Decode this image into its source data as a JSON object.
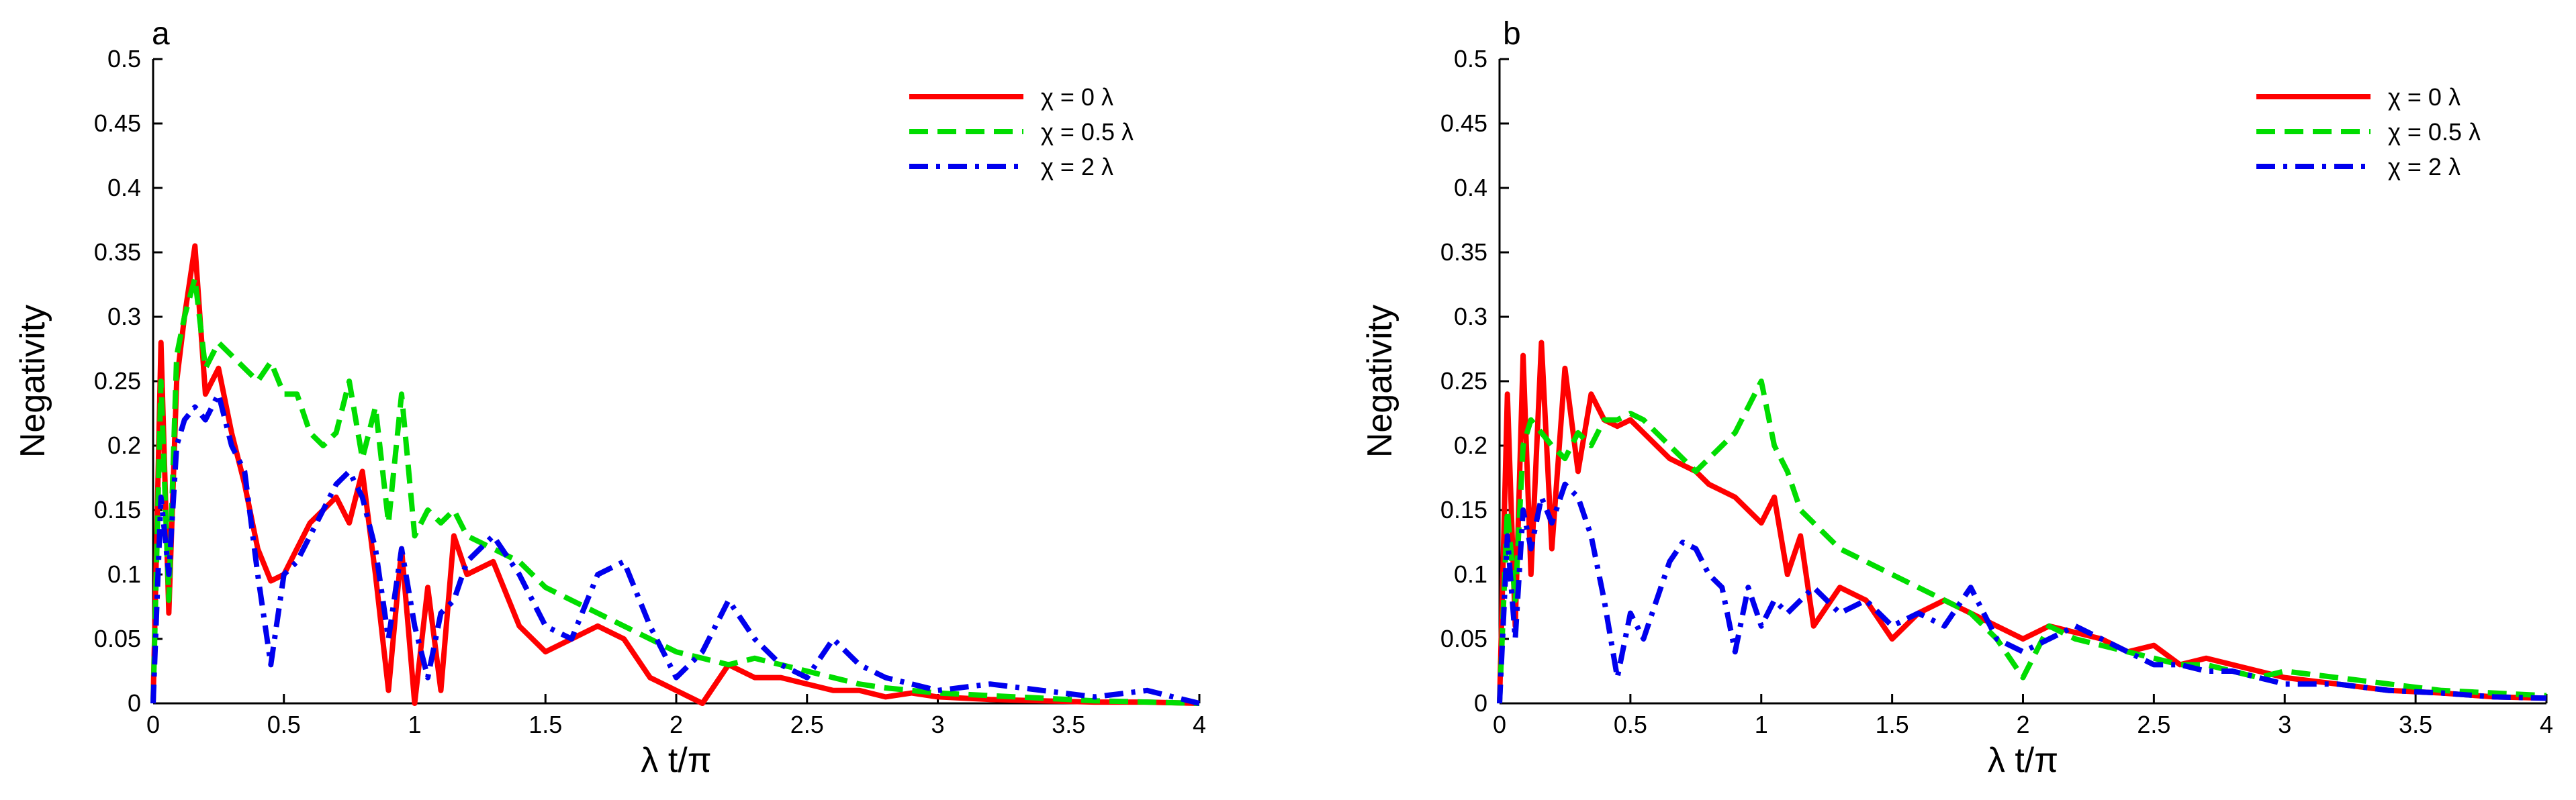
{
  "chart_data": [
    {
      "type": "line",
      "panel_label": "a",
      "title": "",
      "xlabel": "λ t/π",
      "ylabel": "Negativity",
      "xlim": [
        0,
        4
      ],
      "ylim": [
        0,
        0.5
      ],
      "xticks": [
        0,
        0.5,
        1,
        1.5,
        2,
        2.5,
        3,
        3.5,
        4
      ],
      "xtick_labels": [
        "0",
        "0.5",
        "1",
        "1.5",
        "2",
        "2.5",
        "3",
        "3.5",
        "4"
      ],
      "yticks": [
        0,
        0.05,
        0.1,
        0.15,
        0.2,
        0.25,
        0.3,
        0.35,
        0.4,
        0.45,
        0.5
      ],
      "ytick_labels": [
        "0",
        "0.05",
        "0.1",
        "0.15",
        "0.2",
        "0.25",
        "0.3",
        "0.35",
        "0.4",
        "0.45",
        "0.5"
      ],
      "legend_position": "top-right",
      "series": [
        {
          "name": "χ = 0 λ",
          "color": "#ff0000",
          "style": "solid",
          "x": [
            0,
            0.03,
            0.06,
            0.09,
            0.12,
            0.16,
            0.2,
            0.25,
            0.3,
            0.35,
            0.4,
            0.45,
            0.5,
            0.55,
            0.6,
            0.65,
            0.7,
            0.75,
            0.8,
            0.85,
            0.9,
            0.95,
            1.0,
            1.05,
            1.1,
            1.15,
            1.2,
            1.3,
            1.4,
            1.5,
            1.6,
            1.7,
            1.8,
            1.9,
            2.0,
            2.1,
            2.2,
            2.3,
            2.4,
            2.5,
            2.6,
            2.7,
            2.8,
            2.9,
            3.0,
            3.2,
            3.4,
            3.6,
            3.8,
            4.0
          ],
          "y": [
            0,
            0.28,
            0.07,
            0.25,
            0.3,
            0.355,
            0.24,
            0.26,
            0.21,
            0.17,
            0.12,
            0.095,
            0.1,
            0.12,
            0.14,
            0.15,
            0.16,
            0.14,
            0.18,
            0.1,
            0.01,
            0.12,
            0.0,
            0.09,
            0.01,
            0.13,
            0.1,
            0.11,
            0.06,
            0.04,
            0.05,
            0.06,
            0.05,
            0.02,
            0.01,
            0.0,
            0.03,
            0.02,
            0.02,
            0.015,
            0.01,
            0.01,
            0.005,
            0.008,
            0.005,
            0.003,
            0.002,
            0.001,
            0.001,
            0.0
          ]
        },
        {
          "name": "χ = 0.5 λ",
          "color": "#00dd00",
          "style": "dashed",
          "x": [
            0,
            0.03,
            0.06,
            0.09,
            0.12,
            0.16,
            0.2,
            0.25,
            0.3,
            0.35,
            0.4,
            0.45,
            0.5,
            0.55,
            0.6,
            0.65,
            0.7,
            0.75,
            0.8,
            0.85,
            0.9,
            0.95,
            1.0,
            1.05,
            1.1,
            1.15,
            1.2,
            1.3,
            1.4,
            1.5,
            1.6,
            1.7,
            1.8,
            1.9,
            2.0,
            2.1,
            2.2,
            2.3,
            2.4,
            2.5,
            2.6,
            2.7,
            2.8,
            2.9,
            3.0,
            3.2,
            3.4,
            3.6,
            3.8,
            4.0
          ],
          "y": [
            0,
            0.25,
            0.08,
            0.27,
            0.3,
            0.33,
            0.26,
            0.28,
            0.27,
            0.26,
            0.25,
            0.265,
            0.24,
            0.24,
            0.21,
            0.2,
            0.21,
            0.25,
            0.19,
            0.23,
            0.14,
            0.24,
            0.13,
            0.15,
            0.14,
            0.15,
            0.13,
            0.12,
            0.11,
            0.09,
            0.08,
            0.07,
            0.06,
            0.05,
            0.04,
            0.035,
            0.03,
            0.035,
            0.03,
            0.025,
            0.02,
            0.015,
            0.012,
            0.01,
            0.008,
            0.006,
            0.004,
            0.002,
            0.001,
            0.0
          ]
        },
        {
          "name": "χ = 2 λ",
          "color": "#0000ee",
          "style": "dashdot",
          "x": [
            0,
            0.03,
            0.06,
            0.09,
            0.12,
            0.16,
            0.2,
            0.25,
            0.3,
            0.35,
            0.4,
            0.45,
            0.5,
            0.55,
            0.6,
            0.65,
            0.7,
            0.75,
            0.8,
            0.85,
            0.9,
            0.95,
            1.0,
            1.05,
            1.1,
            1.15,
            1.2,
            1.3,
            1.4,
            1.5,
            1.6,
            1.7,
            1.8,
            1.9,
            2.0,
            2.1,
            2.2,
            2.3,
            2.4,
            2.5,
            2.6,
            2.7,
            2.8,
            2.9,
            3.0,
            3.2,
            3.4,
            3.6,
            3.8,
            4.0
          ],
          "y": [
            0,
            0.16,
            0.1,
            0.2,
            0.22,
            0.23,
            0.22,
            0.24,
            0.2,
            0.18,
            0.1,
            0.03,
            0.1,
            0.11,
            0.13,
            0.15,
            0.17,
            0.18,
            0.16,
            0.12,
            0.05,
            0.12,
            0.06,
            0.02,
            0.07,
            0.08,
            0.11,
            0.13,
            0.1,
            0.06,
            0.05,
            0.1,
            0.11,
            0.06,
            0.02,
            0.04,
            0.08,
            0.05,
            0.03,
            0.02,
            0.05,
            0.03,
            0.02,
            0.015,
            0.01,
            0.015,
            0.01,
            0.005,
            0.01,
            0.0
          ]
        }
      ]
    },
    {
      "type": "line",
      "panel_label": "b",
      "title": "",
      "xlabel": "λ t/π",
      "ylabel": "Negativity",
      "xlim": [
        0,
        4
      ],
      "ylim": [
        0,
        0.5
      ],
      "xticks": [
        0,
        0.5,
        1,
        1.5,
        2,
        2.5,
        3,
        3.5,
        4
      ],
      "xtick_labels": [
        "0",
        "0.5",
        "1",
        "1.5",
        "2",
        "2.5",
        "3",
        "3.5",
        "4"
      ],
      "yticks": [
        0,
        0.05,
        0.1,
        0.15,
        0.2,
        0.25,
        0.3,
        0.35,
        0.4,
        0.45,
        0.5
      ],
      "ytick_labels": [
        "0",
        "0.05",
        "0.1",
        "0.15",
        "0.2",
        "0.25",
        "0.3",
        "0.35",
        "0.4",
        "0.45",
        "0.5"
      ],
      "legend_position": "top-right",
      "series": [
        {
          "name": "χ = 0 λ",
          "color": "#ff0000",
          "style": "solid",
          "x": [
            0,
            0.03,
            0.06,
            0.09,
            0.12,
            0.16,
            0.2,
            0.25,
            0.3,
            0.35,
            0.4,
            0.45,
            0.5,
            0.55,
            0.6,
            0.65,
            0.7,
            0.75,
            0.8,
            0.85,
            0.9,
            0.95,
            1.0,
            1.05,
            1.1,
            1.15,
            1.2,
            1.3,
            1.4,
            1.5,
            1.6,
            1.7,
            1.8,
            1.9,
            2.0,
            2.1,
            2.2,
            2.3,
            2.4,
            2.5,
            2.6,
            2.7,
            2.8,
            2.9,
            3.0,
            3.2,
            3.4,
            3.6,
            3.8,
            4.0
          ],
          "y": [
            0,
            0.24,
            0.06,
            0.27,
            0.1,
            0.28,
            0.12,
            0.26,
            0.18,
            0.24,
            0.22,
            0.215,
            0.22,
            0.21,
            0.2,
            0.19,
            0.185,
            0.18,
            0.17,
            0.165,
            0.16,
            0.15,
            0.14,
            0.16,
            0.1,
            0.13,
            0.06,
            0.09,
            0.08,
            0.05,
            0.07,
            0.08,
            0.07,
            0.06,
            0.05,
            0.06,
            0.055,
            0.05,
            0.04,
            0.045,
            0.03,
            0.035,
            0.03,
            0.025,
            0.02,
            0.015,
            0.01,
            0.008,
            0.005,
            0.004
          ]
        },
        {
          "name": "χ = 0.5 λ",
          "color": "#00dd00",
          "style": "dashed",
          "x": [
            0,
            0.03,
            0.06,
            0.09,
            0.12,
            0.16,
            0.2,
            0.25,
            0.3,
            0.35,
            0.4,
            0.45,
            0.5,
            0.55,
            0.6,
            0.65,
            0.7,
            0.75,
            0.8,
            0.85,
            0.9,
            0.95,
            1.0,
            1.05,
            1.1,
            1.15,
            1.2,
            1.3,
            1.4,
            1.5,
            1.6,
            1.7,
            1.8,
            1.9,
            2.0,
            2.1,
            2.2,
            2.3,
            2.4,
            2.5,
            2.6,
            2.7,
            2.8,
            2.9,
            3.0,
            3.2,
            3.4,
            3.6,
            3.8,
            4.0
          ],
          "y": [
            0,
            0.15,
            0.08,
            0.2,
            0.22,
            0.21,
            0.2,
            0.19,
            0.21,
            0.2,
            0.22,
            0.22,
            0.225,
            0.22,
            0.21,
            0.2,
            0.19,
            0.18,
            0.19,
            0.2,
            0.21,
            0.23,
            0.25,
            0.2,
            0.18,
            0.15,
            0.14,
            0.12,
            0.11,
            0.1,
            0.09,
            0.08,
            0.07,
            0.05,
            0.02,
            0.06,
            0.05,
            0.045,
            0.04,
            0.035,
            0.03,
            0.03,
            0.025,
            0.02,
            0.025,
            0.02,
            0.015,
            0.01,
            0.008,
            0.006
          ]
        },
        {
          "name": "χ = 2 λ",
          "color": "#0000ee",
          "style": "dashdot",
          "x": [
            0,
            0.03,
            0.06,
            0.09,
            0.12,
            0.16,
            0.2,
            0.25,
            0.3,
            0.35,
            0.4,
            0.45,
            0.5,
            0.55,
            0.6,
            0.65,
            0.7,
            0.75,
            0.8,
            0.85,
            0.9,
            0.95,
            1.0,
            1.05,
            1.1,
            1.15,
            1.2,
            1.3,
            1.4,
            1.5,
            1.6,
            1.7,
            1.8,
            1.9,
            2.0,
            2.1,
            2.2,
            2.3,
            2.4,
            2.5,
            2.6,
            2.7,
            2.8,
            2.9,
            3.0,
            3.2,
            3.4,
            3.6,
            3.8,
            4.0
          ],
          "y": [
            0,
            0.13,
            0.05,
            0.15,
            0.12,
            0.16,
            0.14,
            0.17,
            0.16,
            0.13,
            0.08,
            0.02,
            0.07,
            0.05,
            0.08,
            0.11,
            0.125,
            0.12,
            0.1,
            0.09,
            0.04,
            0.09,
            0.06,
            0.08,
            0.07,
            0.08,
            0.09,
            0.07,
            0.08,
            0.06,
            0.07,
            0.06,
            0.09,
            0.05,
            0.04,
            0.05,
            0.06,
            0.05,
            0.04,
            0.03,
            0.03,
            0.025,
            0.025,
            0.02,
            0.015,
            0.015,
            0.01,
            0.008,
            0.005,
            0.004
          ]
        }
      ]
    }
  ]
}
